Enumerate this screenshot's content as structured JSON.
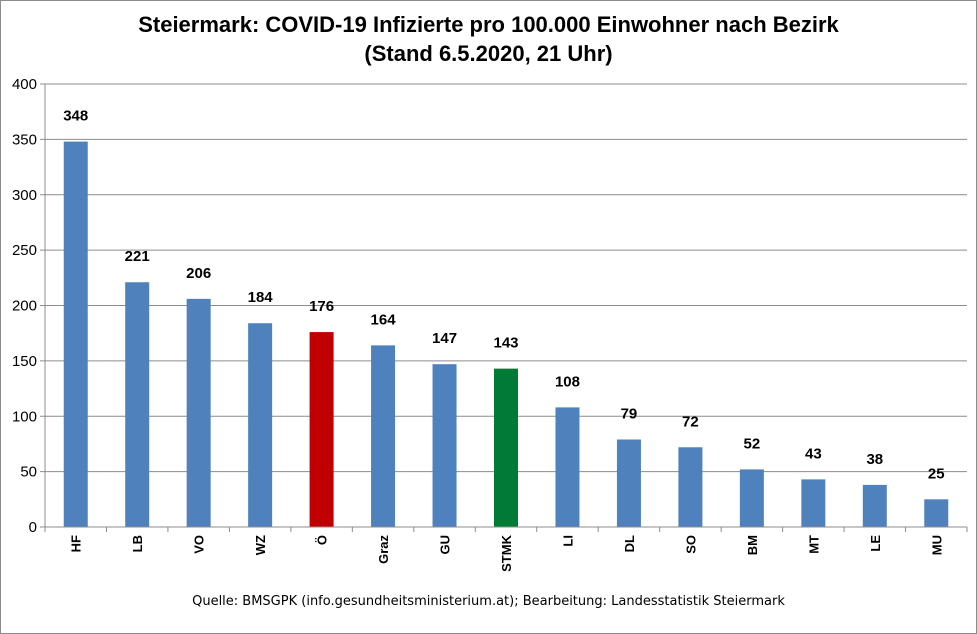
{
  "chart_data": {
    "type": "bar",
    "title": "Steiermark:  COVID-19 Infizierte pro 100.000 Einwohner nach Bezirk",
    "subtitle": "(Stand 6.5.2020, 21 Uhr)",
    "xlabel": "",
    "ylabel": "",
    "ylim": [
      0,
      400
    ],
    "yticks": [
      0,
      50,
      100,
      150,
      200,
      250,
      300,
      350,
      400
    ],
    "grid": true,
    "legend": "none",
    "categories": [
      "HF",
      "LB",
      "VO",
      "WZ",
      "Ö",
      "Graz",
      "GU",
      "STMK",
      "LI",
      "DL",
      "SO",
      "BM",
      "MT",
      "LE",
      "MU"
    ],
    "values": [
      348,
      221,
      206,
      184,
      176,
      164,
      147,
      143,
      108,
      79,
      72,
      52,
      43,
      38,
      25
    ],
    "bar_colors": [
      "#4f81bd",
      "#4f81bd",
      "#4f81bd",
      "#4f81bd",
      "#c00000",
      "#4f81bd",
      "#4f81bd",
      "#007a37",
      "#4f81bd",
      "#4f81bd",
      "#4f81bd",
      "#4f81bd",
      "#4f81bd",
      "#4f81bd",
      "#4f81bd"
    ],
    "data_labels": [
      "348",
      "221",
      "206",
      "184",
      "176",
      "164",
      "147",
      "143",
      "108",
      "79",
      "72",
      "52",
      "43",
      "38",
      "25"
    ],
    "source": "Quelle: BMSGPK (info.gesundheitsministerium.at); Bearbeitung: Landesstatistik Steiermark"
  }
}
